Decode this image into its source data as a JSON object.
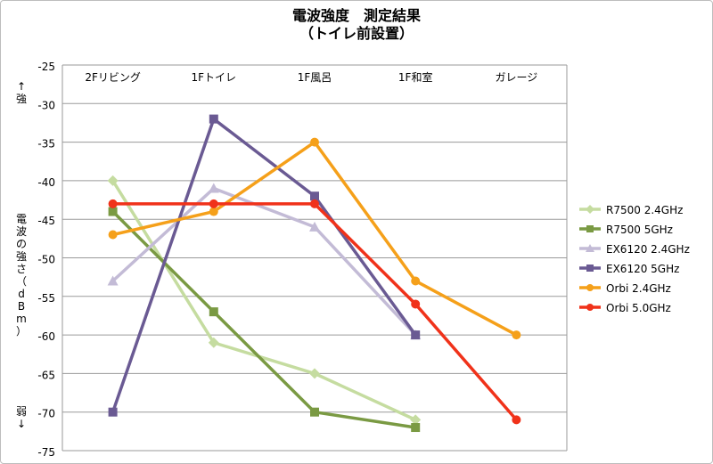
{
  "chart_data": {
    "type": "line",
    "title": "電波強度　測定結果",
    "subtitle": "（トイレ前設置）",
    "categories": [
      "2Fリビング",
      "1Fトイレ",
      "1F風呂",
      "1F和室",
      "ガレージ"
    ],
    "ylabel": "電波の強さ（dBm）",
    "y_strong_label": "↑強",
    "y_weak_label": "弱↓",
    "ylim": [
      -75,
      -25
    ],
    "yticks": [
      -25,
      -30,
      -35,
      -40,
      -45,
      -50,
      -55,
      -60,
      -65,
      -70,
      -75
    ],
    "grid": true,
    "legend_position": "right",
    "series": [
      {
        "name": "R7500 2.4GHz",
        "color": "#c5dca0",
        "marker": "diamond",
        "values": [
          -40,
          -61,
          -65,
          -71,
          null
        ]
      },
      {
        "name": "R7500 5GHz",
        "color": "#7a9a43",
        "marker": "square",
        "values": [
          -44,
          -57,
          -70,
          -72,
          null
        ]
      },
      {
        "name": "EX6120 2.4GHz",
        "color": "#c3bbd6",
        "marker": "triangle",
        "values": [
          -53,
          -41,
          -46,
          -60,
          null
        ]
      },
      {
        "name": "EX6120 5GHz",
        "color": "#6a5a93",
        "marker": "square",
        "values": [
          -70,
          -32,
          -42,
          -60,
          null
        ]
      },
      {
        "name": "Orbi 2.4GHz",
        "color": "#f5a01a",
        "marker": "circle",
        "values": [
          -47,
          -44,
          -35,
          -53,
          -60
        ]
      },
      {
        "name": "Orbi 5.0GHz",
        "color": "#f0321a",
        "marker": "circle",
        "values": [
          -43,
          -43,
          -43,
          -56,
          -71
        ]
      }
    ]
  }
}
